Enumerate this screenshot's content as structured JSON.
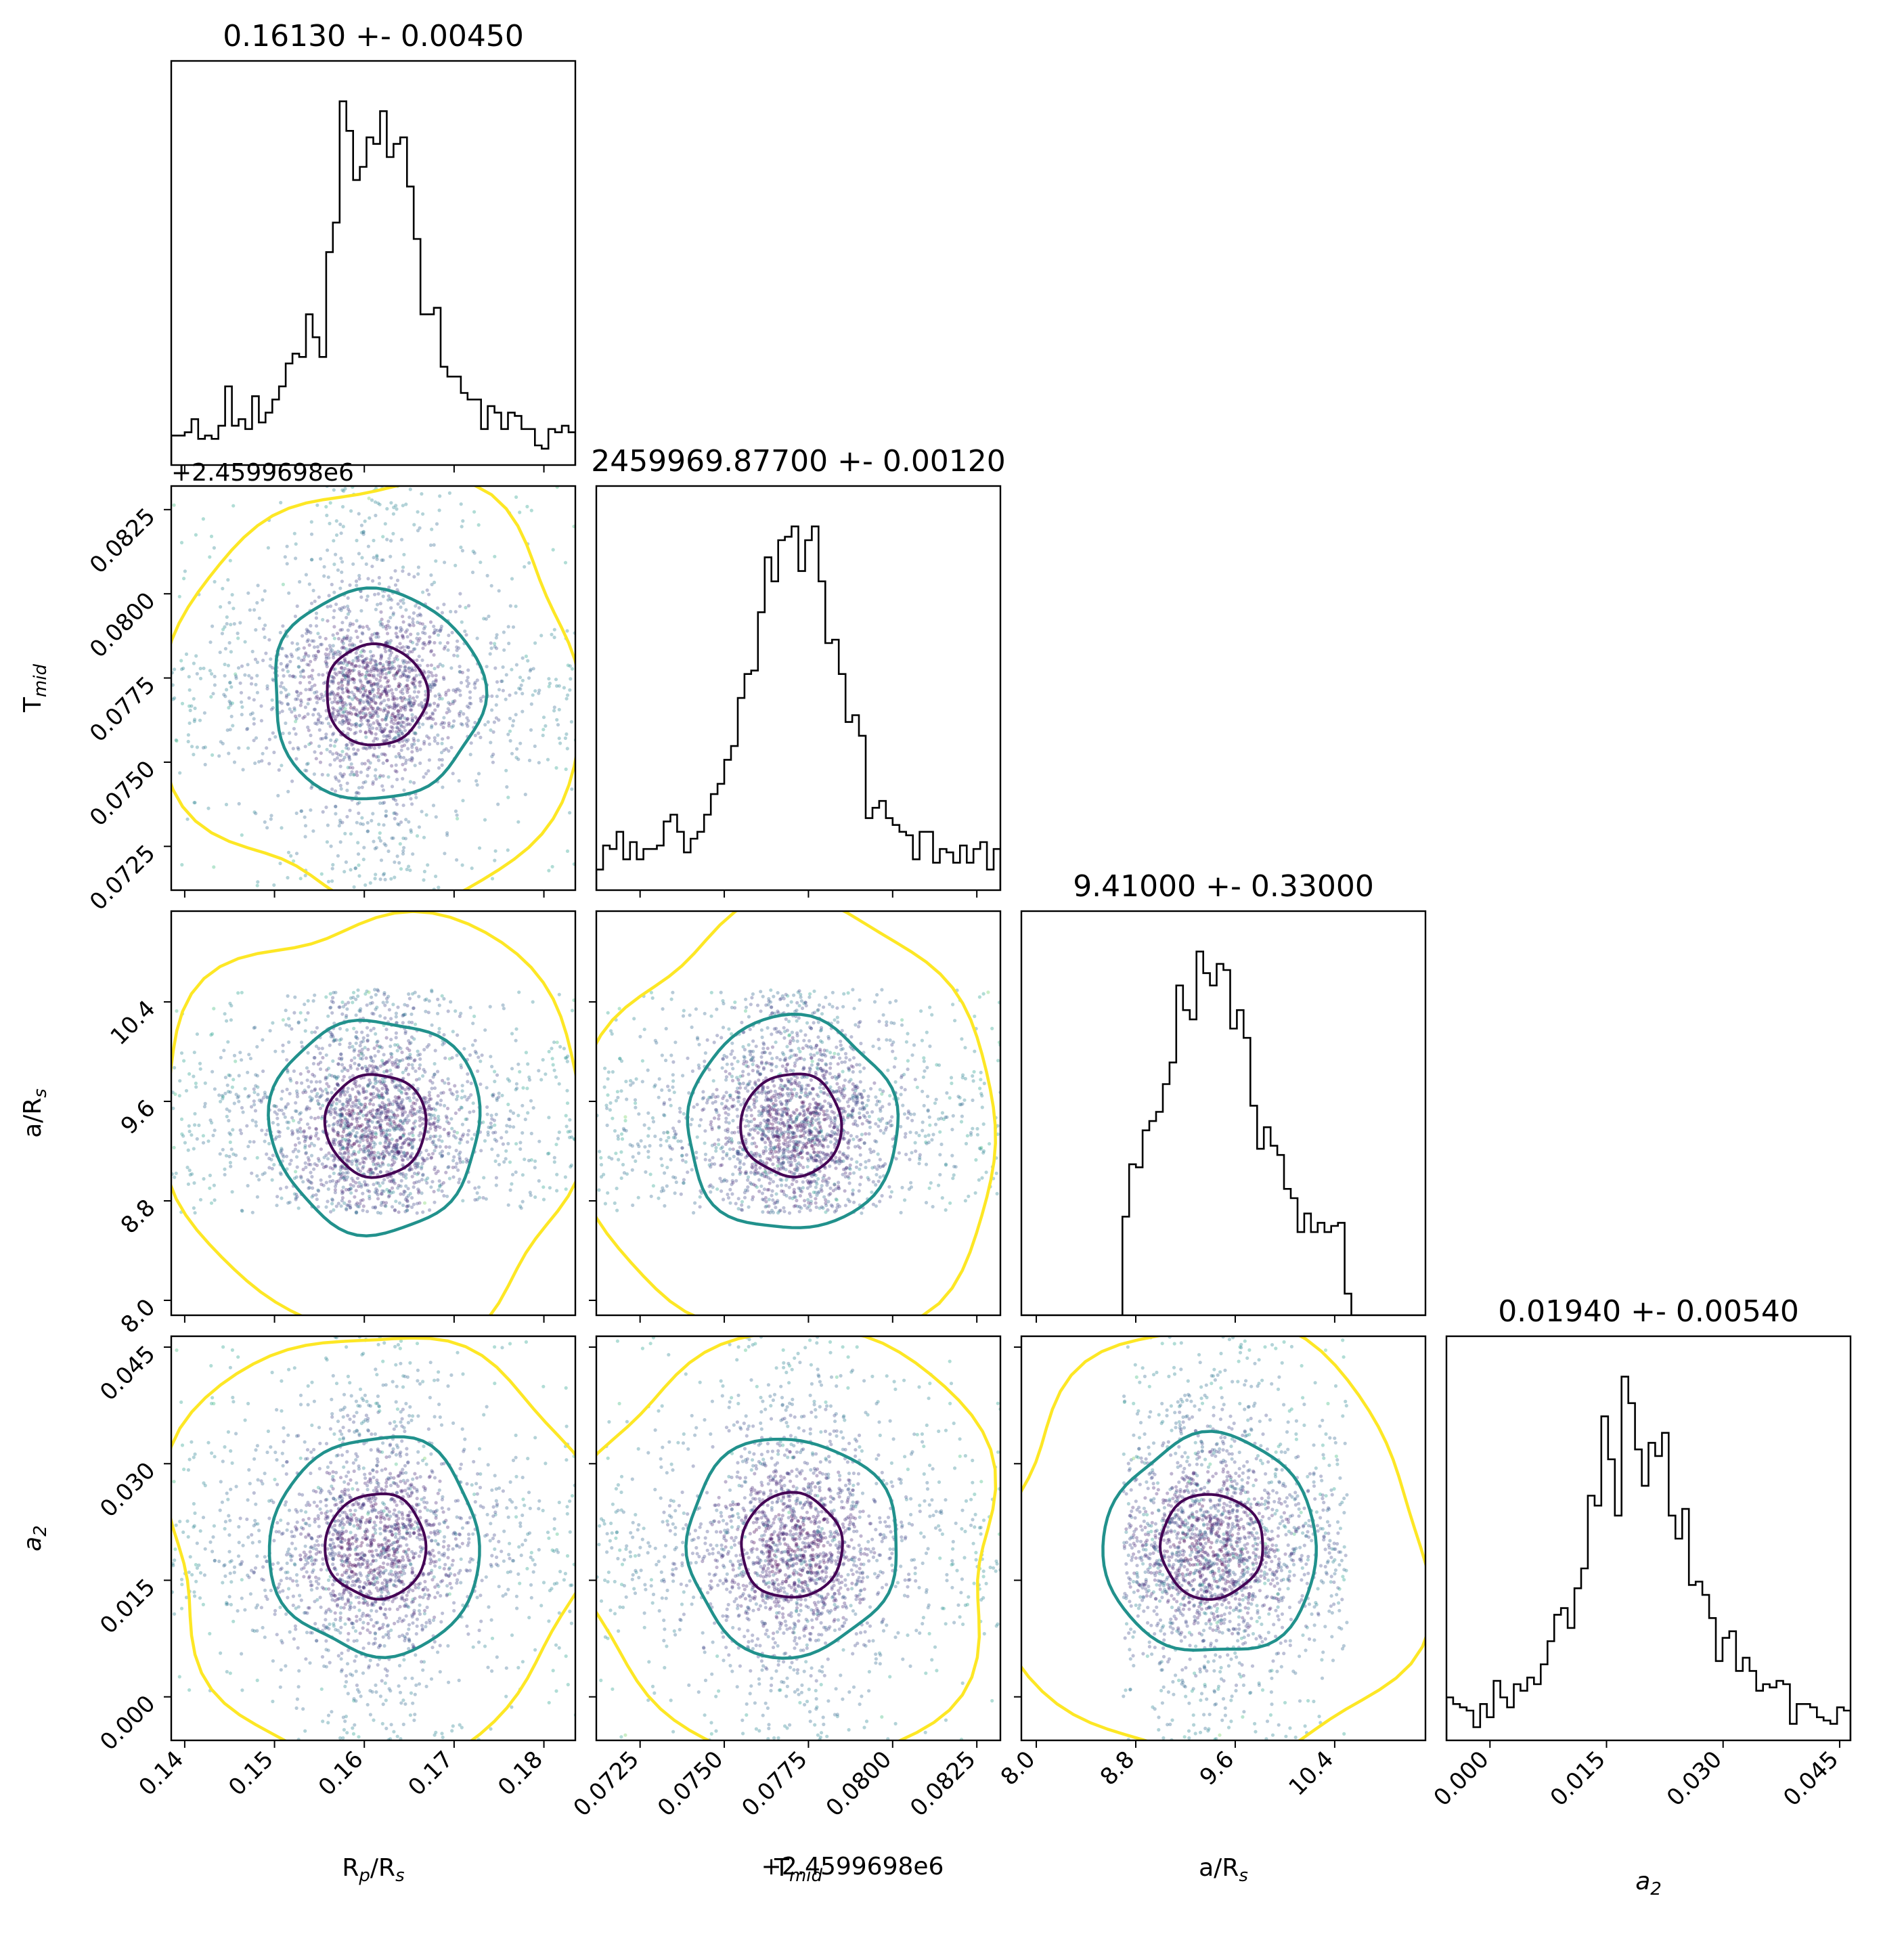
{
  "chart_data": {
    "type": "corner",
    "parameters": [
      {
        "key": "rp",
        "label_main": "R",
        "label_sub": "p",
        "label_rest": "/R",
        "label_sub2": "s",
        "title": "0.16130 +- 0.00450",
        "median": 0.1613,
        "sigma": 0.0045,
        "range": [
          0.1385,
          0.1835
        ],
        "ticks": [
          "0.14",
          "0.15",
          "0.16",
          "0.17",
          "0.18"
        ],
        "tick_values": [
          0.14,
          0.15,
          0.16,
          0.17,
          0.18
        ]
      },
      {
        "key": "tmid",
        "label_main": "T",
        "label_sub": "mid",
        "label_rest": "",
        "label_sub2": "",
        "title": "2459969.87700 +- 0.00120",
        "offset_text": "+2.4599698e6",
        "median": 0.077,
        "sigma": 0.0012,
        "range": [
          0.0712,
          0.0832
        ],
        "ticks": [
          "0.0725",
          "0.0750",
          "0.0775",
          "0.0800",
          "0.0825"
        ],
        "tick_values": [
          0.0725,
          0.075,
          0.0775,
          0.08,
          0.0825
        ]
      },
      {
        "key": "ars",
        "label_main": "a/R",
        "label_sub": "s",
        "label_rest": "",
        "label_sub2": "",
        "title": "9.41000 +- 0.33000",
        "median": 9.41,
        "sigma": 0.33,
        "range": [
          7.88,
          11.13
        ],
        "ticks": [
          "8.0",
          "8.8",
          "9.6",
          "10.4"
        ],
        "tick_values": [
          8.0,
          8.8,
          9.6,
          10.4
        ]
      },
      {
        "key": "a2",
        "label_main": "a",
        "label_sub": "2",
        "label_rest": "",
        "label_sub2": "",
        "label_italic": true,
        "title": "0.01940 +- 0.00540",
        "median": 0.0194,
        "sigma": 0.0054,
        "range": [
          -0.0056,
          0.0464
        ],
        "ticks": [
          "0.000",
          "0.015",
          "0.030",
          "0.045"
        ],
        "tick_values": [
          0.0,
          0.015,
          0.03,
          0.045
        ]
      }
    ],
    "ars_support": [
      8.7,
      10.5
    ],
    "histogram_color": "#000000",
    "contour_colors": [
      "#440154",
      "#21918c",
      "#fde725"
    ],
    "scatter_colormap": "viridis",
    "n_samples_per_panel": 2200
  }
}
